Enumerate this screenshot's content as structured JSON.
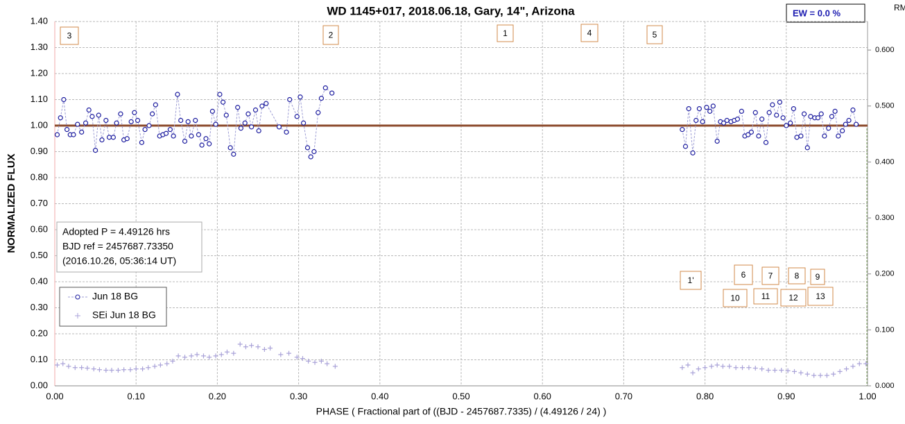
{
  "chart_data": {
    "type": "scatter",
    "title": "WD 1145+017, 2018.06.18, Gary,  14\", Arizona",
    "x_label": "PHASE  ( Fractional part of ((BJD - 2457687.7335)  / (4.49126  / 24) )",
    "y_label": "NORMALIZED  FLUX",
    "y2_label": "RMS i",
    "xlim": [
      0,
      1
    ],
    "ylim": [
      0,
      1.4
    ],
    "y2lim": [
      0,
      0.651
    ],
    "xticks": [
      {
        "value": 0,
        "label": "0.00"
      },
      {
        "value": 0.1,
        "label": "0.10"
      },
      {
        "value": 0.2,
        "label": "0.20"
      },
      {
        "value": 0.3,
        "label": "0.30"
      },
      {
        "value": 0.4,
        "label": "0.40"
      },
      {
        "value": 0.5,
        "label": "0.50"
      },
      {
        "value": 0.6,
        "label": "0.60"
      },
      {
        "value": 0.7,
        "label": "0.70"
      },
      {
        "value": 0.8,
        "label": "0.80"
      },
      {
        "value": 0.9,
        "label": "0.90"
      },
      {
        "value": 1,
        "label": "1.00"
      }
    ],
    "yticks": [
      {
        "value": 0,
        "label": "0.00"
      },
      {
        "value": 0.1,
        "label": "0.10"
      },
      {
        "value": 0.2,
        "label": "0.20"
      },
      {
        "value": 0.3,
        "label": "0.30"
      },
      {
        "value": 0.4,
        "label": "0.40"
      },
      {
        "value": 0.5,
        "label": "0.50"
      },
      {
        "value": 0.6,
        "label": "0.60"
      },
      {
        "value": 0.7,
        "label": "0.70"
      },
      {
        "value": 0.8,
        "label": "0.80"
      },
      {
        "value": 0.9,
        "label": "0.90"
      },
      {
        "value": 1,
        "label": "1.00"
      },
      {
        "value": 1.1,
        "label": "1.10"
      },
      {
        "value": 1.2,
        "label": "1.20"
      },
      {
        "value": 1.3,
        "label": "1.30"
      },
      {
        "value": 1.4,
        "label": "1.40"
      }
    ],
    "y2ticks": [
      {
        "value": 0,
        "label": "0.000"
      },
      {
        "value": 0.1,
        "label": "0.100"
      },
      {
        "value": 0.2,
        "label": "0.200"
      },
      {
        "value": 0.3,
        "label": "0.300"
      },
      {
        "value": 0.4,
        "label": "0.400"
      },
      {
        "value": 0.5,
        "label": "0.500"
      },
      {
        "value": 0.6,
        "label": "0.600"
      }
    ],
    "grid": true,
    "reference_lines": [
      {
        "value": 1.0,
        "color": "#8b4a2b"
      }
    ],
    "series": [
      {
        "name": "Jun 18 BG",
        "color": "#1a1a9e",
        "marker": "circle",
        "line": true,
        "x": [
          0.003,
          0.007,
          0.011,
          0.015,
          0.019,
          0.023,
          0.028,
          0.033,
          0.038,
          0.042,
          0.046,
          0.05,
          0.054,
          0.058,
          0.063,
          0.067,
          0.072,
          0.076,
          0.081,
          0.085,
          0.089,
          0.094,
          0.098,
          0.102,
          0.107,
          0.111,
          0.116,
          0.12,
          0.124,
          0.129,
          0.133,
          0.137,
          0.142,
          0.146,
          0.151,
          0.155,
          0.16,
          0.164,
          0.168,
          0.173,
          0.177,
          0.181,
          0.186,
          0.19,
          0.194,
          0.198,
          0.203,
          0.207,
          0.211,
          0.216,
          0.22,
          0.225,
          0.229,
          0.234,
          0.238,
          0.242,
          0.247,
          0.251,
          0.255,
          0.26,
          0.276,
          0.285,
          0.289,
          0.298,
          0.302,
          0.306,
          0.311,
          0.315,
          0.319,
          0.324,
          0.328,
          0.333,
          0.341,
          null,
          0.772,
          0.776,
          0.78,
          0.785,
          0.789,
          0.793,
          0.797,
          0.802,
          0.806,
          0.81,
          0.815,
          0.819,
          0.823,
          0.827,
          0.832,
          0.836,
          0.84,
          0.845,
          0.849,
          0.853,
          0.857,
          0.862,
          0.866,
          0.87,
          0.875,
          0.879,
          0.883,
          0.888,
          0.892,
          0.896,
          0.9,
          0.905,
          0.909,
          0.913,
          0.918,
          0.922,
          0.926,
          0.93,
          0.935,
          0.939,
          0.943,
          0.947,
          0.952,
          0.956,
          0.96,
          0.964,
          0.969,
          0.973,
          0.977,
          0.982,
          0.986
        ],
        "values": [
          0.965,
          1.03,
          1.1,
          0.985,
          0.965,
          0.965,
          1.005,
          0.975,
          1.01,
          1.06,
          1.035,
          0.905,
          1.04,
          0.945,
          1.02,
          0.955,
          0.955,
          1.01,
          1.045,
          0.945,
          0.95,
          1.015,
          1.05,
          1.02,
          0.935,
          0.985,
          1.0,
          1.045,
          1.08,
          0.96,
          0.965,
          0.97,
          0.985,
          0.96,
          1.12,
          1.02,
          0.94,
          1.015,
          0.96,
          1.02,
          0.965,
          0.925,
          0.95,
          0.93,
          1.055,
          1.005,
          1.12,
          1.09,
          1.04,
          0.915,
          0.89,
          1.07,
          0.99,
          1.01,
          1.045,
          0.995,
          1.06,
          0.98,
          1.075,
          1.085,
          0.995,
          0.975,
          1.1,
          1.035,
          1.11,
          1.01,
          0.915,
          0.88,
          0.9,
          1.05,
          1.105,
          1.145,
          1.125,
          null,
          0.985,
          0.92,
          1.065,
          0.895,
          1.02,
          1.065,
          1.015,
          1.07,
          1.055,
          1.075,
          0.94,
          1.015,
          1.01,
          1.02,
          1.015,
          1.02,
          1.025,
          1.055,
          0.96,
          0.965,
          0.975,
          1.05,
          0.96,
          1.025,
          0.935,
          1.05,
          1.08,
          1.04,
          1.09,
          1.03,
          1.0,
          1.01,
          1.065,
          0.955,
          0.96,
          1.045,
          0.915,
          1.035,
          1.03,
          1.03,
          1.045,
          0.96,
          0.99,
          1.035,
          1.055,
          0.96,
          0.98,
          1.005,
          1.02,
          1.06,
          1.005
        ]
      },
      {
        "name": "SEi Jun 18 BG",
        "color": "#a9a2d8",
        "marker": "plus",
        "line": false,
        "x": [
          0.003,
          0.01,
          0.017,
          0.025,
          0.033,
          0.04,
          0.048,
          0.055,
          0.063,
          0.07,
          0.078,
          0.085,
          0.093,
          0.1,
          0.108,
          0.115,
          0.123,
          0.13,
          0.138,
          0.145,
          0.152,
          0.16,
          0.168,
          0.175,
          0.183,
          0.19,
          0.198,
          0.205,
          0.212,
          0.22,
          0.228,
          0.235,
          0.242,
          0.25,
          0.258,
          0.265,
          0.278,
          0.288,
          0.298,
          0.305,
          0.312,
          0.32,
          0.328,
          0.335,
          0.345,
          0.772,
          0.779,
          0.785,
          0.792,
          0.8,
          0.808,
          0.815,
          0.822,
          0.83,
          0.838,
          0.846,
          0.854,
          0.862,
          0.87,
          0.878,
          0.886,
          0.894,
          0.902,
          0.91,
          0.918,
          0.926,
          0.934,
          0.942,
          0.95,
          0.958,
          0.966,
          0.974,
          0.982,
          0.99,
          0.998
        ],
        "values": [
          0.08,
          0.085,
          0.075,
          0.07,
          0.07,
          0.068,
          0.065,
          0.062,
          0.06,
          0.06,
          0.06,
          0.062,
          0.062,
          0.065,
          0.065,
          0.07,
          0.075,
          0.08,
          0.085,
          0.095,
          0.115,
          0.11,
          0.115,
          0.12,
          0.115,
          0.11,
          0.115,
          0.12,
          0.13,
          0.125,
          0.16,
          0.15,
          0.155,
          0.15,
          0.14,
          0.145,
          0.12,
          0.125,
          0.11,
          0.105,
          0.095,
          0.09,
          0.095,
          0.085,
          0.075,
          0.07,
          0.08,
          0.05,
          0.065,
          0.07,
          0.075,
          0.08,
          0.075,
          0.075,
          0.07,
          0.07,
          0.07,
          0.068,
          0.065,
          0.06,
          0.06,
          0.06,
          0.058,
          0.055,
          0.05,
          0.045,
          0.04,
          0.04,
          0.04,
          0.045,
          0.055,
          0.065,
          0.075,
          0.085,
          0.085
        ]
      }
    ],
    "annotations": [
      "3",
      "2",
      "1",
      "4",
      "5",
      "1'",
      "6",
      "7",
      "8",
      "9",
      "10",
      "11",
      "12",
      "13"
    ],
    "info_box": [
      "Adopted P = 4.49126 hrs",
      "BJD ref = 2457687.73350",
      "(2016.10.26, 05:36:14 UT)"
    ],
    "ew_label": "EW =  0.0 %"
  }
}
